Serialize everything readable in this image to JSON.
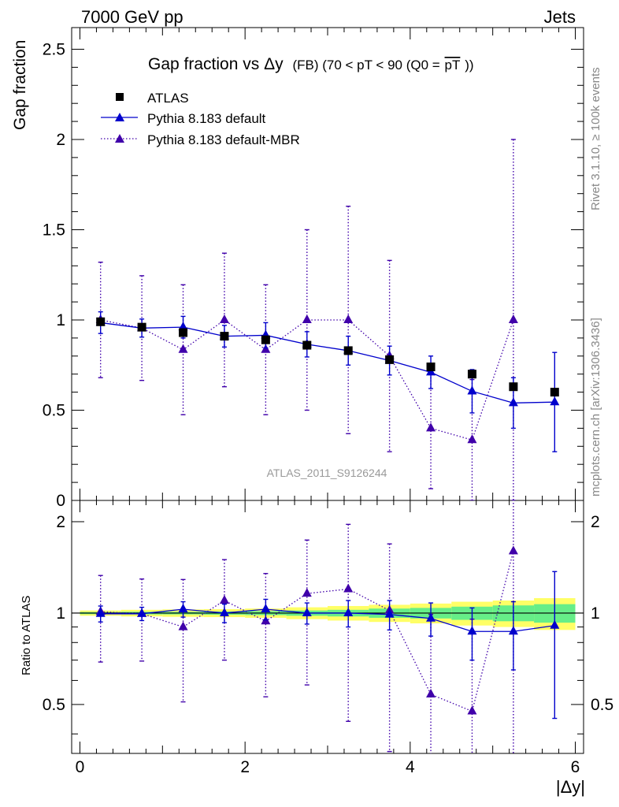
{
  "header": {
    "energy_label": "7000 GeV pp",
    "process_label": "Jets",
    "rivet_label": "Rivet 3.1.10, ≥ 100k events",
    "mcplots_label": "mcplots.cern.ch [arXiv:1306.3436]",
    "analysis_label": "ATLAS_2011_S9126244"
  },
  "chart_data": {
    "type": "scatter",
    "title_main": "Gap fraction vs",
    "title_var": "Δy",
    "title_detail": "(FB) (70 < pT <  90 (Q0 =",
    "title_overline": "pT",
    "title_close": "))",
    "xlabel": "|Δy|",
    "ylabel_top": "Gap fraction",
    "ylabel_bottom": "Ratio to ATLAS",
    "xlim": [
      -0.1,
      6.1
    ],
    "ylim_top": [
      0,
      2.62
    ],
    "ylim_bottom": [
      0.345,
      2.35
    ],
    "x_ticks": [
      "0",
      "2",
      "4",
      "6"
    ],
    "y_ticks_top": [
      "0",
      "0.5",
      "1",
      "1.5",
      "2",
      "2.5"
    ],
    "y_ticks_bottom": [
      "0.5",
      "1",
      "2"
    ],
    "x": [
      0.25,
      0.75,
      1.25,
      1.75,
      2.25,
      2.75,
      3.25,
      3.75,
      4.25,
      4.75,
      5.25,
      5.75
    ],
    "bin_half_width": 0.25,
    "legend": [
      "ATLAS",
      "Pythia 8.183 default",
      "Pythia 8.183 default-MBR"
    ],
    "series": [
      {
        "name": "ATLAS",
        "color": "#000000",
        "marker": "square",
        "values": [
          0.99,
          0.96,
          0.93,
          0.91,
          0.89,
          0.86,
          0.83,
          0.78,
          0.74,
          0.7,
          0.63,
          0.6
        ]
      },
      {
        "name": "Pythia 8.183 default",
        "color": "#0000cc",
        "marker": "triangle",
        "line": "solid",
        "values": [
          0.985,
          0.955,
          0.96,
          0.91,
          0.915,
          0.865,
          0.83,
          0.775,
          0.71,
          0.605,
          0.54,
          0.545
        ],
        "err": [
          0.06,
          0.05,
          0.06,
          0.06,
          0.07,
          0.07,
          0.08,
          0.08,
          0.09,
          0.12,
          0.14,
          0.275
        ],
        "ratio": [
          0.995,
          0.995,
          1.03,
          1.0,
          1.03,
          1.0,
          1.0,
          0.99,
          0.96,
          0.87,
          0.87,
          0.91
        ],
        "ratio_err": [
          0.06,
          0.05,
          0.06,
          0.07,
          0.08,
          0.08,
          0.1,
          0.11,
          0.12,
          0.17,
          0.22,
          0.46
        ]
      },
      {
        "name": "Pythia 8.183 default-MBR",
        "color": "#4000aa",
        "marker": "triangle",
        "line": "dotted",
        "values": [
          1.0,
          0.955,
          0.835,
          1.0,
          0.835,
          1.0,
          1.0,
          0.8,
          0.4,
          0.335,
          1.0,
          null
        ],
        "err": [
          0.32,
          0.29,
          0.36,
          0.37,
          0.36,
          0.5,
          0.63,
          0.53,
          0.335,
          0.335,
          1.0,
          null
        ],
        "ratio": [
          1.01,
          0.995,
          0.9,
          1.1,
          0.94,
          1.16,
          1.2,
          1.02,
          0.54,
          0.475,
          1.6,
          null
        ],
        "ratio_err": [
          0.32,
          0.3,
          0.39,
          0.4,
          0.41,
          0.58,
          0.76,
          0.67,
          0.45,
          0.48,
          1.55,
          null
        ]
      }
    ],
    "band_inner": [
      0.008,
      0.01,
      0.01,
      0.012,
      0.015,
      0.02,
      0.025,
      0.035,
      0.04,
      0.05,
      0.06,
      0.07
    ],
    "band_outer": [
      0.02,
      0.025,
      0.028,
      0.03,
      0.035,
      0.045,
      0.055,
      0.065,
      0.075,
      0.09,
      0.1,
      0.12
    ],
    "band_colors": {
      "inner": "#66ee88",
      "outer": "#ffff66"
    }
  }
}
